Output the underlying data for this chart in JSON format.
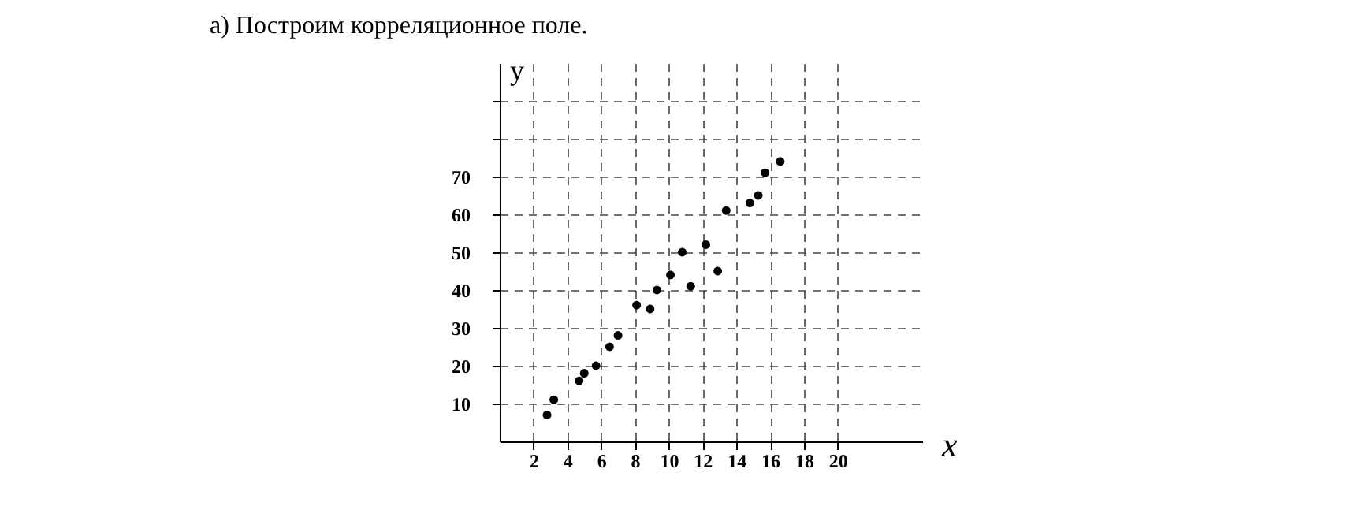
{
  "chart_data": {
    "type": "scatter",
    "title": "а) Построим корреляционное поле.",
    "xlabel": "x",
    "ylabel": "y",
    "x": [
      2.8,
      3.2,
      4.7,
      5.0,
      5.7,
      6.5,
      7.0,
      8.1,
      8.9,
      9.3,
      10.1,
      10.8,
      11.3,
      12.2,
      12.9,
      13.4,
      14.8,
      15.3,
      15.7,
      16.6
    ],
    "values": [
      7,
      11,
      16,
      18,
      20,
      25,
      28,
      36,
      35,
      40,
      44,
      50,
      41,
      52,
      45,
      61,
      63,
      65,
      71,
      74
    ],
    "color": "#000000",
    "marker": "circle",
    "grid": true,
    "xlim": [
      0,
      25
    ],
    "ylim": [
      0,
      100
    ],
    "xticks": [
      2,
      4,
      6,
      8,
      10,
      12,
      14,
      16,
      18,
      20
    ],
    "yticks": [
      10,
      20,
      30,
      40,
      50,
      60,
      70,
      {
        "value": 80,
        "label": null
      },
      {
        "value": 90,
        "label": null
      }
    ]
  }
}
